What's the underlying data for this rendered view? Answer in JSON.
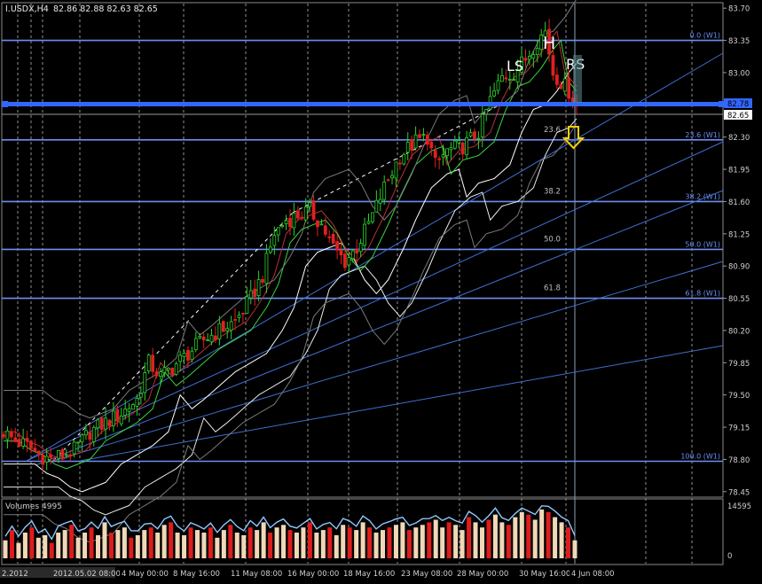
{
  "window": {
    "symbol_header": "I.USDX,H4",
    "ohlc_header": "82.86 82.88 82.63 82.65"
  },
  "annotations": {
    "head": "H",
    "left_shoulder": "LS",
    "right_shoulder": "RS"
  },
  "price_badges": {
    "current": "82.65",
    "level": "82.78"
  },
  "fib_left_labels": [
    "23.6",
    "38.2",
    "50.0",
    "61.8"
  ],
  "fib_right_labels": [
    "0.0 (W1)",
    "23.6 (W1)",
    "38.2 (W1)",
    "50.0 (W1)",
    "61.8 (W1)",
    "100.0 (W1)"
  ],
  "volume_panel": {
    "label": "Volumes 4995",
    "y_max_label": "14595",
    "y_min_label": "0"
  },
  "x_axis_labels": [
    "2.2012",
    "2012.05.02 08:00",
    "4 May 00:00",
    "8 May 16:00",
    "11 May 08:00",
    "16 May 00:00",
    "18 May 16:00",
    "23 May 08:00",
    "28 May 00:00",
    "30 May 16:00",
    "4 Jun 08:00"
  ],
  "colors": {
    "background": "#000000",
    "bull_candle": "#2bd22b",
    "bear_candle": "#e02020",
    "fib_line": "#6b8ff2",
    "level_line": "#3366ff",
    "arrow": "#f0d000",
    "volume_up": "#f0d8b8",
    "volume_down": "#dd1c1c"
  },
  "chart_data": {
    "type": "candlestick",
    "symbol": "I.USDX",
    "timeframe": "H4",
    "y_ticks": [
      83.7,
      83.35,
      83.0,
      82.65,
      82.3,
      81.95,
      81.6,
      81.25,
      80.9,
      80.55,
      80.2,
      79.85,
      79.5,
      79.15,
      78.8,
      78.45
    ],
    "ylim": [
      78.4,
      83.75
    ],
    "fib_levels_w1": [
      {
        "level": "0.0",
        "price": 83.35
      },
      {
        "level": "23.6",
        "price": 82.27
      },
      {
        "level": "38.2",
        "price": 81.6
      },
      {
        "level": "50.0",
        "price": 81.08
      },
      {
        "level": "61.8",
        "price": 80.55
      },
      {
        "level": "100.0",
        "price": 78.78
      }
    ],
    "horizontal_level": 82.78,
    "last_price": 82.65,
    "close_path": [
      [
        0,
        79.1
      ],
      [
        3,
        79.0
      ],
      [
        6,
        78.95
      ],
      [
        9,
        78.85
      ],
      [
        12,
        78.8
      ],
      [
        15,
        78.85
      ],
      [
        18,
        78.9
      ],
      [
        22,
        79.1
      ],
      [
        26,
        79.2
      ],
      [
        30,
        79.3
      ],
      [
        34,
        79.45
      ],
      [
        37,
        79.85
      ],
      [
        40,
        79.7
      ],
      [
        43,
        79.8
      ],
      [
        47,
        79.95
      ],
      [
        51,
        80.1
      ],
      [
        55,
        80.2
      ],
      [
        59,
        80.3
      ],
      [
        63,
        80.55
      ],
      [
        66,
        80.8
      ],
      [
        69,
        81.25
      ],
      [
        72,
        81.4
      ],
      [
        75,
        81.45
      ],
      [
        78,
        81.5
      ],
      [
        81,
        81.35
      ],
      [
        84,
        81.1
      ],
      [
        87,
        80.95
      ],
      [
        90,
        81.1
      ],
      [
        94,
        81.45
      ],
      [
        97,
        81.75
      ],
      [
        101,
        82.1
      ],
      [
        105,
        82.25
      ],
      [
        108,
        82.3
      ],
      [
        110,
        82.0
      ],
      [
        113,
        82.15
      ],
      [
        117,
        82.2
      ],
      [
        121,
        82.35
      ],
      [
        124,
        82.7
      ],
      [
        127,
        82.95
      ],
      [
        130,
        83.0
      ],
      [
        133,
        83.15
      ],
      [
        136,
        83.35
      ],
      [
        138,
        83.45
      ],
      [
        140,
        83.0
      ],
      [
        142,
        82.9
      ],
      [
        144,
        82.8
      ],
      [
        146,
        82.65
      ]
    ],
    "volumes_relative": [
      0.35,
      0.55,
      0.3,
      0.5,
      0.6,
      0.4,
      0.45,
      0.3,
      0.5,
      0.55,
      0.65,
      0.4,
      0.5,
      0.6,
      0.45,
      0.7,
      0.5,
      0.55,
      0.6,
      0.4,
      0.45,
      0.55,
      0.6,
      0.5,
      0.65,
      0.7,
      0.5,
      0.45,
      0.6,
      0.55,
      0.5,
      0.6,
      0.4,
      0.55,
      0.65,
      0.5,
      0.45,
      0.6,
      0.55,
      0.7,
      0.5,
      0.6,
      0.65,
      0.55,
      0.5,
      0.6,
      0.7,
      0.5,
      0.55,
      0.6,
      0.45,
      0.65,
      0.6,
      0.55,
      0.7,
      0.6,
      0.5,
      0.55,
      0.6,
      0.65,
      0.7,
      0.55,
      0.6,
      0.65,
      0.7,
      0.75,
      0.6,
      0.7,
      0.65,
      0.55,
      0.8,
      0.7,
      0.6,
      0.75,
      0.85,
      0.7,
      0.65,
      0.8,
      0.9,
      0.85,
      0.75,
      0.95,
      0.9,
      0.8,
      0.7,
      0.6,
      0.35
    ]
  }
}
